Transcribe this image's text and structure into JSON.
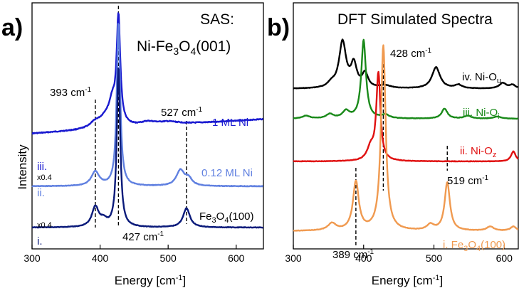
{
  "panel_a": {
    "letter": "a)",
    "title_line1": "SAS:",
    "title_line2": "Ni-Fe",
    "title_sub3": "3",
    "title_O": "O",
    "title_sub4": "4",
    "title_tail": "(001)",
    "ylabel": "Intensity",
    "xlabel": "Energy [cm",
    "xlabel_sup": "-1",
    "xlabel_tail": "]",
    "xticks": [
      "300",
      "400",
      "500",
      "600"
    ],
    "peak_labels": [
      {
        "text": "393 cm",
        "sup": "-1"
      },
      {
        "text": "527 cm",
        "sup": "-1"
      },
      {
        "text": "427 cm",
        "sup": "-1"
      }
    ],
    "series_labels": [
      "1 ML Ni",
      "0.12 ML Ni",
      "Fe",
      "3",
      "O",
      "4",
      "(100)"
    ],
    "roman": [
      "iii.",
      "ii.",
      "i."
    ],
    "scales": [
      "x0.4",
      "x0.4"
    ]
  },
  "panel_b": {
    "letter": "b)",
    "title": "DFT Simulated Spectra",
    "xlabel": "Energy [cm",
    "xlabel_sup": "-1",
    "xlabel_tail": "]",
    "xticks": [
      "300",
      "400",
      "500",
      "600"
    ],
    "peak_labels": [
      {
        "text": "428 cm",
        "sup": "-1"
      },
      {
        "text": "519 cm",
        "sup": "-1"
      },
      {
        "text": "389 cm",
        "sup": "-1"
      }
    ],
    "series_labels": [
      {
        "text": "iv. Ni-O",
        "sub": "u"
      },
      {
        "text": "iii.  Ni-O",
        "sub": "i"
      },
      {
        "text": "ii. Ni-O",
        "sub": "z"
      },
      {
        "text": "i. Fe",
        "sub": "3",
        "mid": "O",
        "sub2": "4",
        "tail": "(100)"
      }
    ]
  },
  "colors": {
    "dark_blue": "#0a1a7a",
    "light_blue": "#6080e0",
    "blue": "#1a1ad0",
    "black": "#000000",
    "green": "#1a8a1a",
    "red": "#e01010",
    "orange": "#f09a50"
  },
  "chart_data": [
    {
      "type": "line",
      "title": "SAS: Ni-Fe3O4(001)",
      "xlabel": "Energy [cm-1]",
      "ylabel": "Intensity",
      "xlim": [
        300,
        640
      ],
      "series": [
        {
          "name": "1 ML Ni",
          "peaks": [
            [
              393,
              0.3
            ],
            [
              415,
              0.7
            ],
            [
              427,
              2.2
            ]
          ],
          "offset": 2.0
        },
        {
          "name": "0.12 ML Ni",
          "peaks": [
            [
              393,
              0.3
            ],
            [
              427,
              1.4
            ],
            [
              527,
              0.4
            ]
          ],
          "offset": 1.0
        },
        {
          "name": "Fe3O4(100)",
          "peaks": [
            [
              393,
              0.6
            ],
            [
              427,
              2.3
            ],
            [
              527,
              0.55
            ]
          ],
          "offset": 0.0
        }
      ],
      "annotations": [
        393,
        427,
        527
      ]
    },
    {
      "type": "line",
      "title": "DFT Simulated Spectra",
      "xlabel": "Energy [cm-1]",
      "ylabel": "Intensity",
      "xlim": [
        300,
        620
      ],
      "series": [
        {
          "name": "iv. Ni-Ou",
          "peaks": [
            [
              370,
              1.6
            ],
            [
              386,
              1.0
            ],
            [
              400,
              0.7
            ],
            [
              503,
              0.7
            ],
            [
              598,
              0.2
            ]
          ],
          "offset": 3
        },
        {
          "name": "iii. Ni-Oi",
          "peaks": [
            [
              375,
              0.3
            ],
            [
              400,
              2.6
            ],
            [
              515,
              0.35
            ]
          ],
          "offset": 2
        },
        {
          "name": "ii. Ni-Oz",
          "peaks": [
            [
              421,
              2.5
            ],
            [
              613,
              0.35
            ]
          ],
          "offset": 1
        },
        {
          "name": "i. Fe3O4(100)",
          "peaks": [
            [
              389,
              1.8
            ],
            [
              428,
              3.6
            ],
            [
              519,
              1.6
            ],
            [
              355,
              0.2
            ]
          ],
          "offset": 0
        }
      ],
      "annotations": [
        389,
        428,
        519
      ]
    }
  ]
}
